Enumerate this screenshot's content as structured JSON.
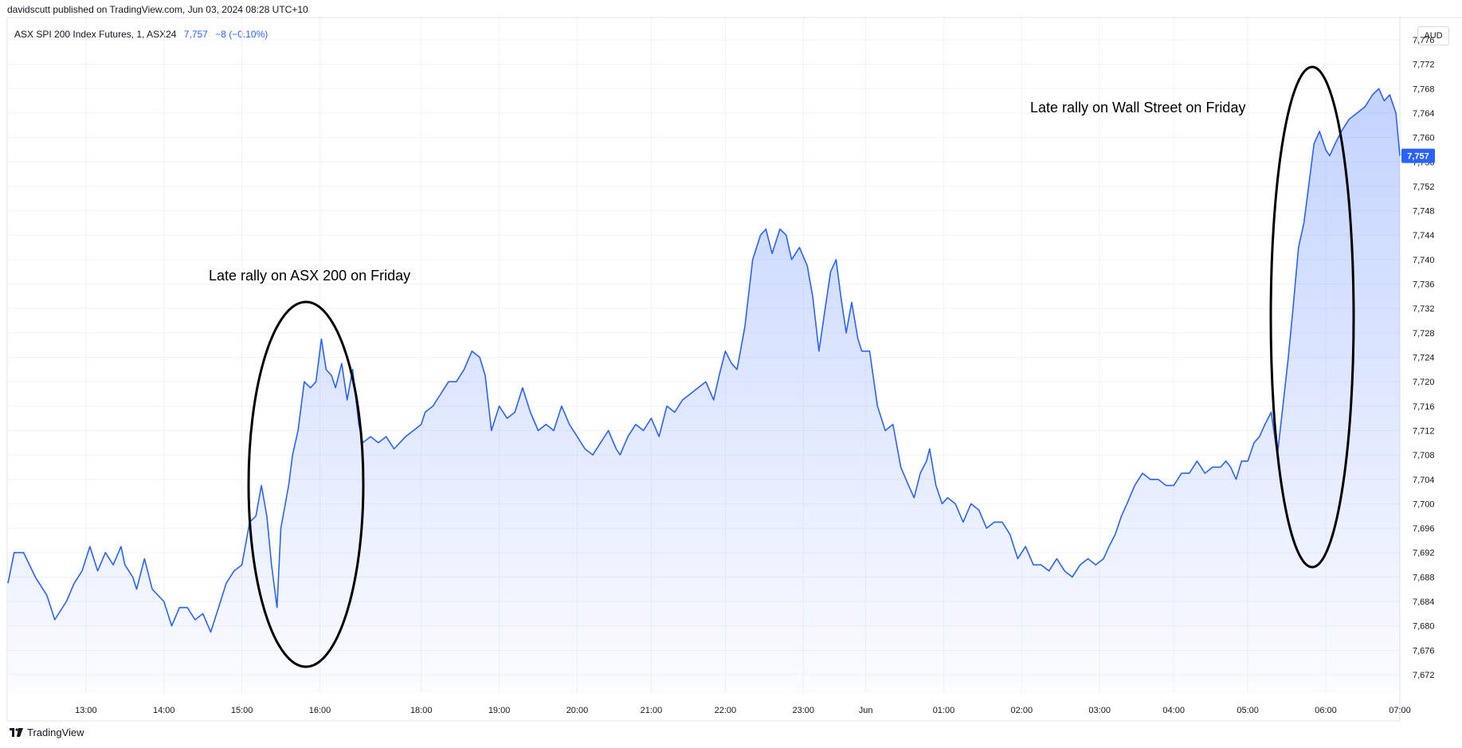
{
  "header": {
    "published": "davidscutt published on TradingView.com, Jun 03, 2024 08:28 UTC+10"
  },
  "legend": {
    "symbol": "ASX SPI 200 Index Futures, 1, ASX24",
    "last": "7,757",
    "change": "−8 (−0.10%)"
  },
  "currency": "AUD",
  "footer": {
    "brand": "TradingView"
  },
  "colors": {
    "line": "#2962ff",
    "grid": "#f0f3fa",
    "axis_text": "#131722",
    "annotation": "#000000"
  },
  "chart_data": {
    "type": "area",
    "title": "",
    "xlabel": "",
    "ylabel": "",
    "ylim": [
      7669,
      7776
    ],
    "grid": true,
    "y_ticks": [
      7672,
      7676,
      7680,
      7684,
      7688,
      7692,
      7696,
      7700,
      7704,
      7708,
      7712,
      7716,
      7720,
      7724,
      7728,
      7732,
      7736,
      7740,
      7744,
      7748,
      7752,
      7756,
      7760,
      7764,
      7768,
      7772,
      7776
    ],
    "y_tick_labels": [
      "7,672",
      "7,676",
      "7,680",
      "7,684",
      "7,688",
      "7,692",
      "7,696",
      "7,700",
      "7,704",
      "7,708",
      "7,712",
      "7,716",
      "7,720",
      "7,724",
      "7,728",
      "7,732",
      "7,736",
      "7,740",
      "7,744",
      "7,748",
      "7,752",
      "7,756",
      "7,760",
      "7,764",
      "7,768",
      "7,772",
      "7,776"
    ],
    "x_ticks": [
      {
        "label": "13:00",
        "t": 1.0
      },
      {
        "label": "14:00",
        "t": 2.0
      },
      {
        "label": "15:00",
        "t": 3.0
      },
      {
        "label": "16:00",
        "t": 4.0
      },
      {
        "label": "18:00",
        "t": 5.3
      },
      {
        "label": "19:00",
        "t": 6.3
      },
      {
        "label": "20:00",
        "t": 7.3
      },
      {
        "label": "21:00",
        "t": 8.25
      },
      {
        "label": "22:00",
        "t": 9.2
      },
      {
        "label": "23:00",
        "t": 10.2
      },
      {
        "label": "Jun",
        "t": 11.0
      },
      {
        "label": "01:00",
        "t": 12.0
      },
      {
        "label": "02:00",
        "t": 13.0
      },
      {
        "label": "03:00",
        "t": 14.0
      },
      {
        "label": "04:00",
        "t": 14.95
      },
      {
        "label": "05:00",
        "t": 15.9
      },
      {
        "label": "06:00",
        "t": 16.9
      },
      {
        "label": "07:00",
        "t": 17.85
      }
    ],
    "series": [
      {
        "values": [
          [
            0.0,
            7687
          ],
          [
            0.08,
            7692
          ],
          [
            0.2,
            7692
          ],
          [
            0.35,
            7688
          ],
          [
            0.5,
            7685
          ],
          [
            0.6,
            7681
          ],
          [
            0.75,
            7684
          ],
          [
            0.85,
            7687
          ],
          [
            0.95,
            7689
          ],
          [
            1.05,
            7693
          ],
          [
            1.15,
            7689
          ],
          [
            1.25,
            7692
          ],
          [
            1.35,
            7690
          ],
          [
            1.45,
            7693
          ],
          [
            1.5,
            7690
          ],
          [
            1.6,
            7688
          ],
          [
            1.65,
            7686
          ],
          [
            1.75,
            7691
          ],
          [
            1.85,
            7686
          ],
          [
            2.0,
            7684
          ],
          [
            2.1,
            7680
          ],
          [
            2.2,
            7683
          ],
          [
            2.3,
            7683
          ],
          [
            2.4,
            7681
          ],
          [
            2.5,
            7682
          ],
          [
            2.6,
            7679
          ],
          [
            2.7,
            7683
          ],
          [
            2.8,
            7687
          ],
          [
            2.9,
            7689
          ],
          [
            3.0,
            7690
          ],
          [
            3.1,
            7697
          ],
          [
            3.18,
            7698
          ],
          [
            3.25,
            7703
          ],
          [
            3.32,
            7698
          ],
          [
            3.38,
            7690
          ],
          [
            3.45,
            7683
          ],
          [
            3.5,
            7696
          ],
          [
            3.6,
            7703
          ],
          [
            3.65,
            7708
          ],
          [
            3.72,
            7712
          ],
          [
            3.8,
            7720
          ],
          [
            3.88,
            7719
          ],
          [
            3.95,
            7720
          ],
          [
            4.02,
            7727
          ],
          [
            4.08,
            7722
          ],
          [
            4.15,
            7721
          ],
          [
            4.2,
            7719
          ],
          [
            4.28,
            7723
          ],
          [
            4.35,
            7717
          ],
          [
            4.42,
            7722
          ],
          [
            4.5,
            7713
          ],
          [
            4.55,
            7710
          ],
          [
            4.65,
            7711
          ],
          [
            4.75,
            7710
          ],
          [
            4.85,
            7711
          ],
          [
            4.95,
            7709
          ],
          [
            5.1,
            7711
          ],
          [
            5.2,
            7712
          ],
          [
            5.3,
            7713
          ],
          [
            5.35,
            7715
          ],
          [
            5.45,
            7716
          ],
          [
            5.55,
            7718
          ],
          [
            5.65,
            7720
          ],
          [
            5.75,
            7720
          ],
          [
            5.85,
            7722
          ],
          [
            5.95,
            7725
          ],
          [
            6.05,
            7724
          ],
          [
            6.12,
            7721
          ],
          [
            6.2,
            7712
          ],
          [
            6.3,
            7716
          ],
          [
            6.4,
            7714
          ],
          [
            6.5,
            7715
          ],
          [
            6.6,
            7719
          ],
          [
            6.7,
            7715
          ],
          [
            6.8,
            7712
          ],
          [
            6.9,
            7713
          ],
          [
            7.0,
            7712
          ],
          [
            7.1,
            7716
          ],
          [
            7.2,
            7713
          ],
          [
            7.3,
            7711
          ],
          [
            7.4,
            7709
          ],
          [
            7.5,
            7708
          ],
          [
            7.6,
            7710
          ],
          [
            7.7,
            7712
          ],
          [
            7.8,
            7709
          ],
          [
            7.85,
            7708
          ],
          [
            7.95,
            7711
          ],
          [
            8.05,
            7713
          ],
          [
            8.15,
            7712
          ],
          [
            8.25,
            7714
          ],
          [
            8.35,
            7711
          ],
          [
            8.45,
            7716
          ],
          [
            8.55,
            7715
          ],
          [
            8.65,
            7717
          ],
          [
            8.75,
            7718
          ],
          [
            8.85,
            7719
          ],
          [
            8.95,
            7720
          ],
          [
            9.05,
            7717
          ],
          [
            9.12,
            7721
          ],
          [
            9.2,
            7725
          ],
          [
            9.28,
            7723
          ],
          [
            9.35,
            7722
          ],
          [
            9.45,
            7729
          ],
          [
            9.55,
            7740
          ],
          [
            9.65,
            7744
          ],
          [
            9.72,
            7745
          ],
          [
            9.8,
            7741
          ],
          [
            9.9,
            7745
          ],
          [
            9.98,
            7744
          ],
          [
            10.05,
            7740
          ],
          [
            10.15,
            7742
          ],
          [
            10.25,
            7739
          ],
          [
            10.32,
            7734
          ],
          [
            10.4,
            7725
          ],
          [
            10.48,
            7732
          ],
          [
            10.55,
            7738
          ],
          [
            10.62,
            7740
          ],
          [
            10.68,
            7734
          ],
          [
            10.75,
            7728
          ],
          [
            10.82,
            7733
          ],
          [
            10.9,
            7727
          ],
          [
            10.95,
            7725
          ],
          [
            11.05,
            7725
          ],
          [
            11.15,
            7716
          ],
          [
            11.25,
            7712
          ],
          [
            11.35,
            7713
          ],
          [
            11.45,
            7706
          ],
          [
            11.55,
            7703
          ],
          [
            11.62,
            7701
          ],
          [
            11.7,
            7705
          ],
          [
            11.78,
            7707
          ],
          [
            11.82,
            7709
          ],
          [
            11.9,
            7703
          ],
          [
            11.98,
            7700
          ],
          [
            12.05,
            7701
          ],
          [
            12.15,
            7700
          ],
          [
            12.25,
            7697
          ],
          [
            12.35,
            7700
          ],
          [
            12.45,
            7699
          ],
          [
            12.55,
            7696
          ],
          [
            12.65,
            7697
          ],
          [
            12.75,
            7697
          ],
          [
            12.85,
            7695
          ],
          [
            12.95,
            7691
          ],
          [
            13.05,
            7693
          ],
          [
            13.15,
            7690
          ],
          [
            13.25,
            7690
          ],
          [
            13.35,
            7689
          ],
          [
            13.45,
            7691
          ],
          [
            13.55,
            7689
          ],
          [
            13.65,
            7688
          ],
          [
            13.75,
            7690
          ],
          [
            13.85,
            7691
          ],
          [
            13.95,
            7690
          ],
          [
            14.05,
            7691
          ],
          [
            14.12,
            7693
          ],
          [
            14.2,
            7695
          ],
          [
            14.28,
            7698
          ],
          [
            14.35,
            7700
          ],
          [
            14.45,
            7703
          ],
          [
            14.55,
            7705
          ],
          [
            14.65,
            7704
          ],
          [
            14.75,
            7704
          ],
          [
            14.85,
            7703
          ],
          [
            14.95,
            7703
          ],
          [
            15.05,
            7705
          ],
          [
            15.15,
            7705
          ],
          [
            15.25,
            7707
          ],
          [
            15.35,
            7705
          ],
          [
            15.45,
            7706
          ],
          [
            15.55,
            7706
          ],
          [
            15.62,
            7707
          ],
          [
            15.68,
            7706
          ],
          [
            15.75,
            7704
          ],
          [
            15.82,
            7707
          ],
          [
            15.9,
            7707
          ],
          [
            15.98,
            7710
          ],
          [
            16.05,
            7711
          ],
          [
            16.12,
            7713
          ],
          [
            16.2,
            7715
          ],
          [
            16.28,
            7708
          ],
          [
            16.35,
            7716
          ],
          [
            16.42,
            7724
          ],
          [
            16.48,
            7732
          ],
          [
            16.55,
            7742
          ],
          [
            16.62,
            7746
          ],
          [
            16.68,
            7752
          ],
          [
            16.75,
            7759
          ],
          [
            16.82,
            7761
          ],
          [
            16.9,
            7758
          ],
          [
            16.95,
            7757
          ],
          [
            17.02,
            7759
          ],
          [
            17.1,
            7761
          ],
          [
            17.2,
            7763
          ],
          [
            17.3,
            7764
          ],
          [
            17.4,
            7765
          ],
          [
            17.5,
            7767
          ],
          [
            17.58,
            7768
          ],
          [
            17.65,
            7766
          ],
          [
            17.72,
            7767
          ],
          [
            17.8,
            7764
          ],
          [
            17.85,
            7757
          ]
        ]
      }
    ],
    "annotations": [
      {
        "text": "Late rally on ASX 200 on Friday"
      },
      {
        "text": "Late rally on Wall Street on Friday"
      }
    ]
  }
}
